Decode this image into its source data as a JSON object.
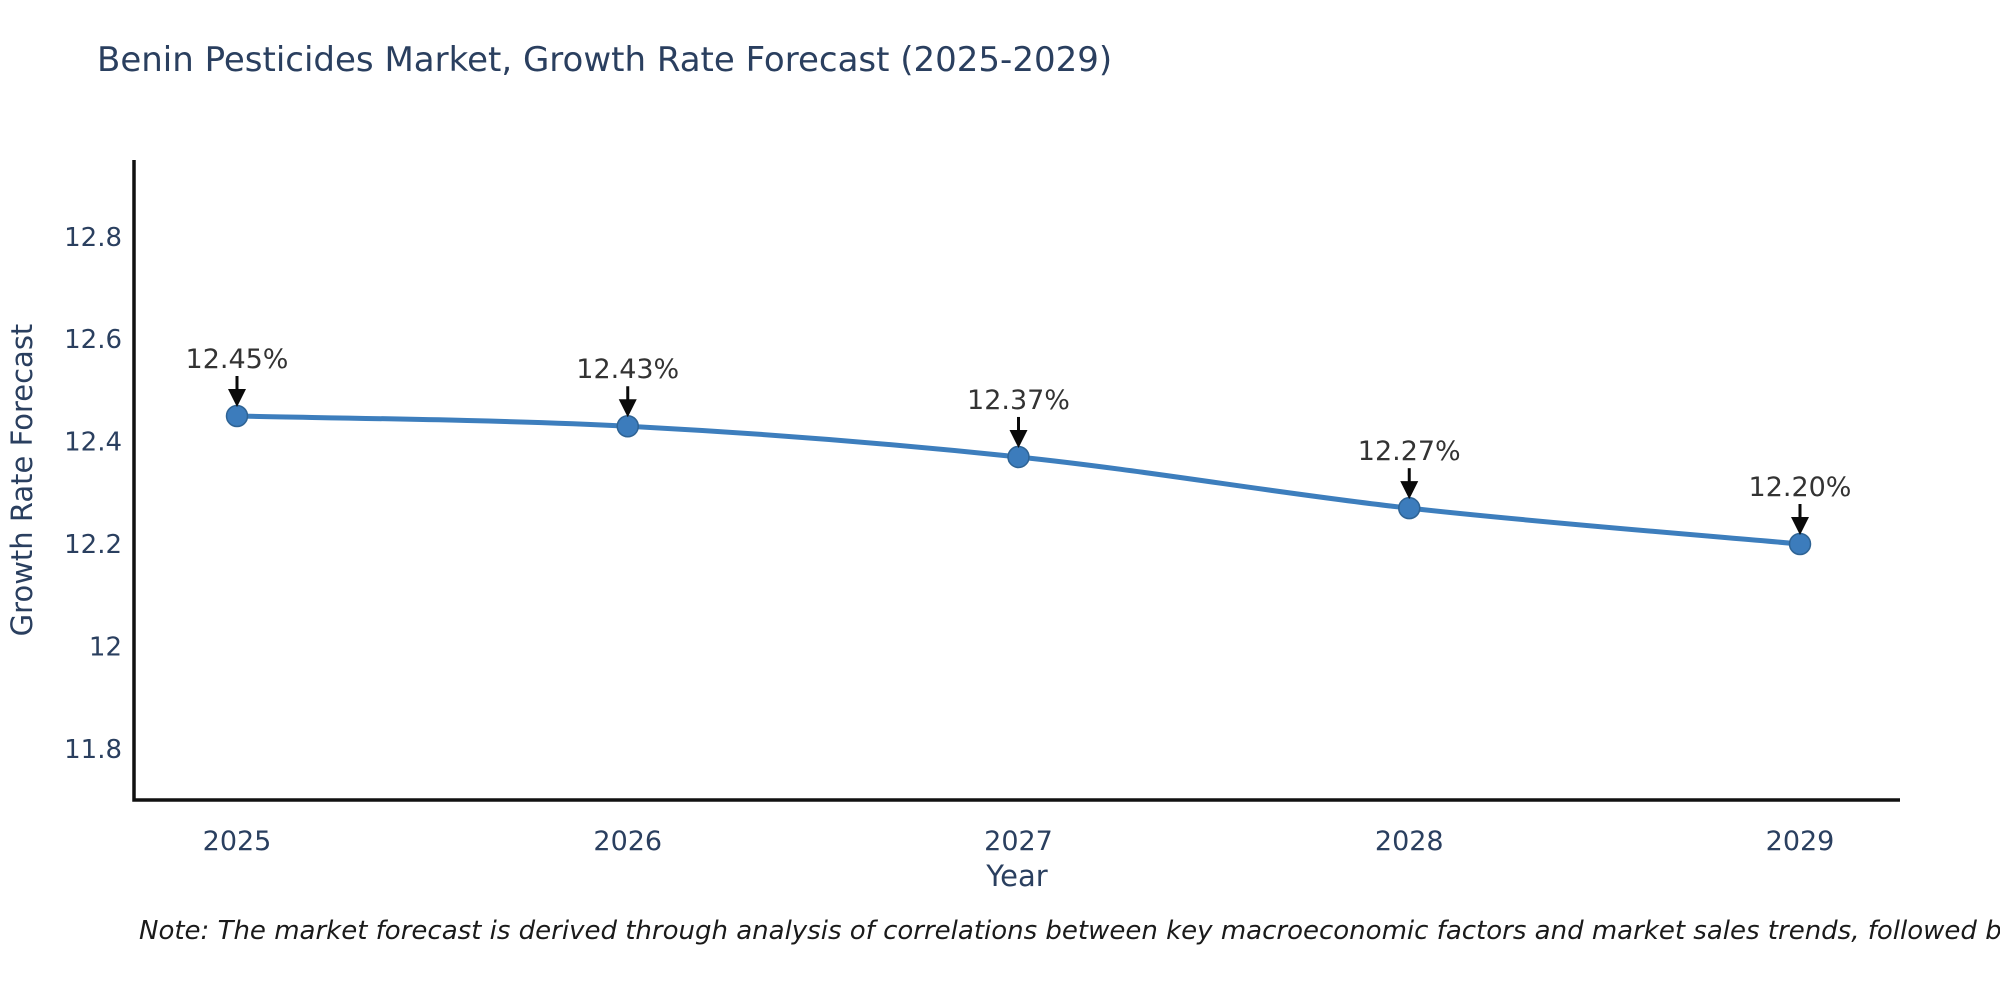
{
  "title": "Benin Pesticides Market, Growth Rate Forecast (2025-2029)",
  "note": "Note: The market forecast is derived through analysis of correlations between key macroeconomic factors and market sales trends, followed by predictive modeling to project future sales.",
  "colors": {
    "title_text": "#2a3f5f",
    "tick_text": "#2a3f5f",
    "annotation_text": "#333333",
    "arrow": "#0a0a0a",
    "axis_line": "#111111",
    "line": "#3d7ebd",
    "marker_fill": "#3c7cbc",
    "marker_edge": "#2e6394",
    "background": "#ffffff"
  },
  "chart_data": {
    "type": "line",
    "title": "Benin Pesticides Market, Growth Rate Forecast (2025-2029)",
    "xlabel": "Year",
    "ylabel": "Growth Rate Forecast",
    "x": [
      2025,
      2026,
      2027,
      2028,
      2029
    ],
    "y": [
      12.45,
      12.43,
      12.37,
      12.27,
      12.2
    ],
    "point_labels": [
      "12.45%",
      "12.43%",
      "12.37%",
      "12.27%",
      "12.20%"
    ],
    "xtick_labels": [
      "2025",
      "2026",
      "2027",
      "2028",
      "2029"
    ],
    "yticks": [
      11.8,
      12.0,
      12.2,
      12.4,
      12.6,
      12.8
    ],
    "ytick_labels": [
      "11.8",
      "12",
      "12.2",
      "12.4",
      "12.6",
      "12.8"
    ],
    "ylim": [
      11.7,
      12.95
    ],
    "grid": false,
    "legend": false,
    "line_shape": "spline",
    "markers": true,
    "annotations_arrows": true
  }
}
